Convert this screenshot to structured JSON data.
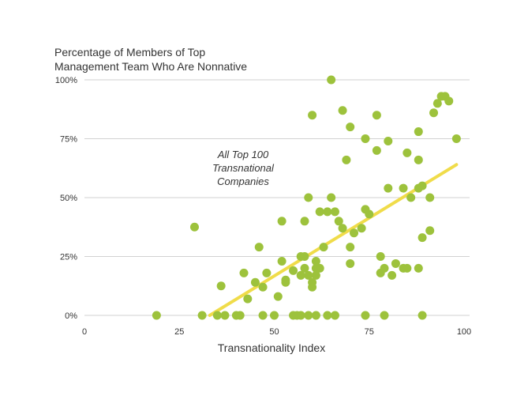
{
  "chart_data": {
    "type": "scatter",
    "title_lines": [
      "Percentage of Members of Top",
      "Management Team Who Are Nonnative"
    ],
    "xlabel": "Transnationality Index",
    "ylabel": "",
    "annotation_lines": [
      "All Top 100",
      "Transnational",
      "Companies"
    ],
    "xlim": [
      0,
      100
    ],
    "ylim": [
      0,
      100
    ],
    "x_ticks": [
      0,
      25,
      50,
      75,
      100
    ],
    "x_tick_labels": [
      "0",
      "25",
      "50",
      "75",
      "100"
    ],
    "y_ticks": [
      0,
      25,
      50,
      75,
      100
    ],
    "y_tick_labels": [
      "0%",
      "25%",
      "50%",
      "75%",
      "100%"
    ],
    "grid": "horizontal",
    "colors": {
      "points": "#9DC23C",
      "trend": "#F0DC4A",
      "grid": "#d2d2d2",
      "text": "#333333"
    },
    "trendline": {
      "x": [
        33,
        98
      ],
      "y": [
        0,
        64
      ]
    },
    "points": [
      [
        19,
        0
      ],
      [
        31,
        0
      ],
      [
        35,
        0
      ],
      [
        37,
        0
      ],
      [
        40,
        0
      ],
      [
        41,
        0
      ],
      [
        47,
        0
      ],
      [
        50,
        0
      ],
      [
        55,
        0
      ],
      [
        56,
        0
      ],
      [
        57,
        0
      ],
      [
        59,
        0
      ],
      [
        61,
        0
      ],
      [
        64,
        0
      ],
      [
        66,
        0
      ],
      [
        74,
        0
      ],
      [
        79,
        0
      ],
      [
        89,
        0
      ],
      [
        29,
        37.5
      ],
      [
        36,
        12.5
      ],
      [
        42,
        18
      ],
      [
        43,
        7
      ],
      [
        45,
        14
      ],
      [
        46,
        29
      ],
      [
        47,
        12
      ],
      [
        48,
        18
      ],
      [
        51,
        8
      ],
      [
        52,
        23
      ],
      [
        53,
        14
      ],
      [
        53,
        15
      ],
      [
        55,
        19
      ],
      [
        52,
        40
      ],
      [
        57,
        25
      ],
      [
        57,
        17
      ],
      [
        58,
        20
      ],
      [
        58,
        25
      ],
      [
        58,
        40
      ],
      [
        59,
        17
      ],
      [
        59,
        50
      ],
      [
        60,
        14
      ],
      [
        60,
        12
      ],
      [
        61,
        20
      ],
      [
        61,
        23
      ],
      [
        61,
        17
      ],
      [
        62,
        44
      ],
      [
        62,
        20
      ],
      [
        63,
        29
      ],
      [
        64,
        44
      ],
      [
        65,
        50
      ],
      [
        66,
        44
      ],
      [
        67,
        40
      ],
      [
        68,
        37
      ],
      [
        70,
        29
      ],
      [
        70,
        22
      ],
      [
        71,
        35
      ],
      [
        73,
        37
      ],
      [
        74,
        45
      ],
      [
        75,
        43
      ],
      [
        77,
        70
      ],
      [
        78,
        25
      ],
      [
        78,
        18
      ],
      [
        79,
        20
      ],
      [
        81,
        17
      ],
      [
        82,
        22
      ],
      [
        84,
        20
      ],
      [
        85,
        20
      ],
      [
        86,
        50
      ],
      [
        88,
        20
      ],
      [
        89,
        33
      ],
      [
        60,
        85
      ],
      [
        65,
        100
      ],
      [
        68,
        87
      ],
      [
        69,
        66
      ],
      [
        70,
        80
      ],
      [
        74,
        75
      ],
      [
        77,
        85
      ],
      [
        80,
        74
      ],
      [
        80,
        54
      ],
      [
        84,
        54
      ],
      [
        85,
        69
      ],
      [
        88,
        78
      ],
      [
        88,
        66
      ],
      [
        88,
        54
      ],
      [
        89,
        55
      ],
      [
        91,
        50
      ],
      [
        91,
        36
      ],
      [
        92,
        86
      ],
      [
        93,
        90
      ],
      [
        94,
        93
      ],
      [
        95,
        93
      ],
      [
        96,
        91
      ],
      [
        98,
        75
      ]
    ]
  }
}
